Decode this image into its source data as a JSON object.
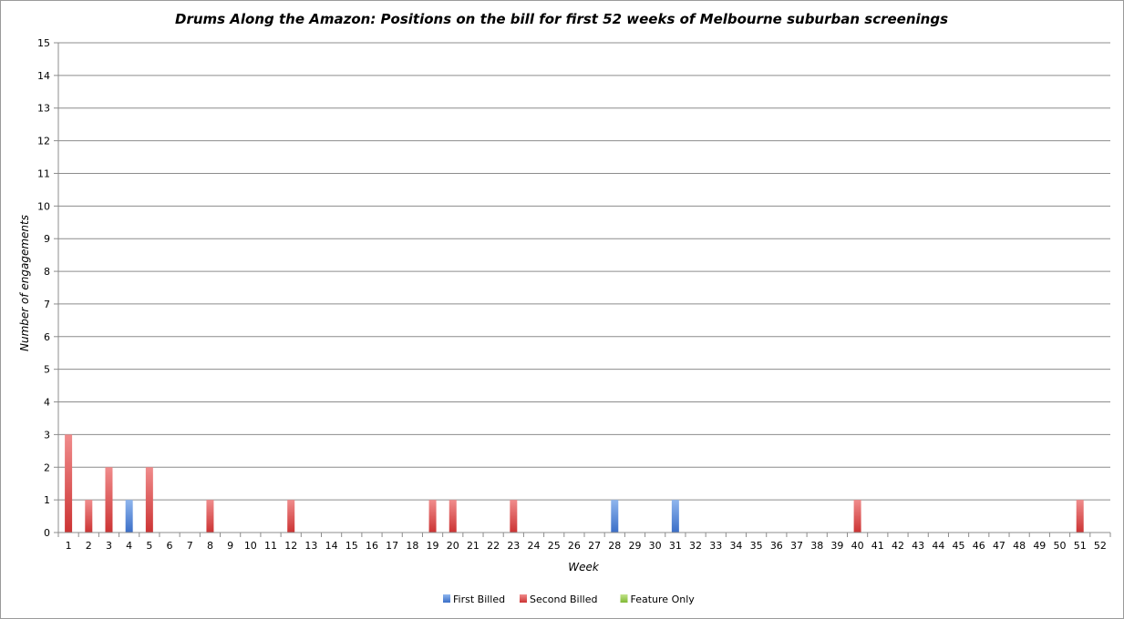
{
  "chart_data": {
    "type": "bar",
    "stacked": true,
    "title": "Drums Along the Amazon: Positions on the bill for first 52 weeks of Melbourne suburban screenings",
    "xlabel": "Week",
    "ylabel": "Number of engagements",
    "ylim": [
      0,
      15
    ],
    "yticks": [
      "0",
      "1",
      "2",
      "3",
      "4",
      "5",
      "6",
      "7",
      "8",
      "9",
      "10",
      "11",
      "12",
      "13",
      "14",
      "15"
    ],
    "grid": true,
    "legend_position": "bottom",
    "categories": [
      "1",
      "2",
      "3",
      "4",
      "5",
      "6",
      "7",
      "8",
      "9",
      "10",
      "11",
      "12",
      "13",
      "14",
      "15",
      "16",
      "17",
      "18",
      "19",
      "20",
      "21",
      "22",
      "23",
      "24",
      "25",
      "26",
      "27",
      "28",
      "29",
      "30",
      "31",
      "32",
      "33",
      "34",
      "35",
      "36",
      "37",
      "38",
      "39",
      "40",
      "41",
      "42",
      "43",
      "44",
      "45",
      "46",
      "47",
      "48",
      "49",
      "50",
      "51",
      "52"
    ],
    "series": [
      {
        "name": "First Billed",
        "color": "#4a7fd0",
        "values": [
          0,
          0,
          0,
          1,
          0,
          0,
          0,
          0,
          0,
          0,
          0,
          0,
          0,
          0,
          0,
          0,
          0,
          0,
          0,
          0,
          0,
          0,
          0,
          0,
          0,
          0,
          0,
          1,
          0,
          0,
          1,
          0,
          0,
          0,
          0,
          0,
          0,
          0,
          0,
          0,
          0,
          0,
          0,
          0,
          0,
          0,
          0,
          0,
          0,
          0,
          0,
          0
        ]
      },
      {
        "name": "Second Billed",
        "color": "#d63c3c",
        "values": [
          3,
          1,
          2,
          0,
          2,
          0,
          0,
          1,
          0,
          0,
          0,
          1,
          0,
          0,
          0,
          0,
          0,
          0,
          1,
          1,
          0,
          0,
          1,
          0,
          0,
          0,
          0,
          0,
          0,
          0,
          0,
          0,
          0,
          0,
          0,
          0,
          0,
          0,
          0,
          1,
          0,
          0,
          0,
          0,
          0,
          0,
          0,
          0,
          0,
          0,
          1,
          0
        ]
      },
      {
        "name": "Feature Only",
        "color": "#8cc63e",
        "values": [
          0,
          0,
          0,
          0,
          0,
          0,
          0,
          0,
          0,
          0,
          0,
          0,
          0,
          0,
          0,
          0,
          0,
          0,
          0,
          0,
          0,
          0,
          0,
          0,
          0,
          0,
          0,
          0,
          0,
          0,
          0,
          0,
          0,
          0,
          0,
          0,
          0,
          0,
          0,
          0,
          0,
          0,
          0,
          0,
          0,
          0,
          0,
          0,
          0,
          0,
          0,
          0
        ]
      }
    ]
  }
}
